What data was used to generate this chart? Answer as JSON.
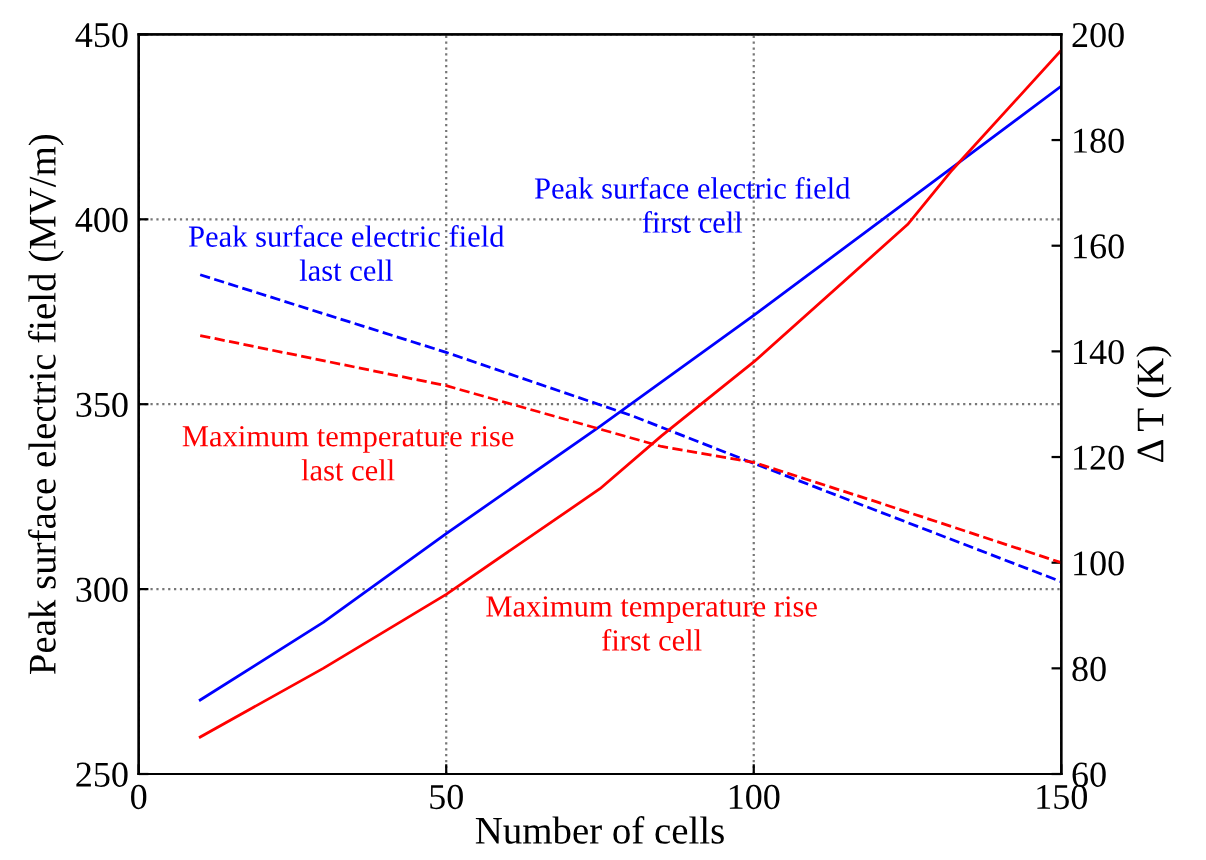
{
  "chart_data": {
    "type": "line",
    "xlabel": "Number of cells",
    "ylabel": "Peak surface electric field (MV/m)",
    "y2label": "Δ T (K)",
    "xlim": [
      0,
      150
    ],
    "xticks": [
      0,
      50,
      100,
      150
    ],
    "ylim": [
      250,
      450
    ],
    "yticks": [
      250,
      300,
      350,
      400,
      450
    ],
    "y2lim": [
      60,
      200
    ],
    "y2ticks": [
      60,
      80,
      100,
      120,
      140,
      160,
      180,
      200
    ],
    "grid": true,
    "legend": false,
    "series": [
      {
        "color": "#0000ff",
        "line_style": "solid",
        "x": [
          10,
          30,
          50,
          75,
          100,
          125,
          150
        ],
        "values": [
          270,
          291,
          315,
          344,
          374,
          405,
          436
        ]
      },
      {
        "color": "#0000ff",
        "line_style": "dashed",
        "x": [
          10,
          50,
          80,
          100,
          125,
          150
        ],
        "values": [
          385,
          364,
          347,
          334,
          318,
          302
        ]
      },
      {
        "color": "#ff0000",
        "line_style": "solid",
        "axis": "y2",
        "x": [
          10,
          30,
          50,
          75,
          85,
          100,
          125,
          132,
          150
        ],
        "values": [
          67,
          80,
          94,
          114,
          124,
          138,
          164,
          174,
          197
        ]
      },
      {
        "color": "#ff0000",
        "line_style": "dashed",
        "axis": "y2",
        "x": [
          10,
          50,
          85,
          100,
          120,
          150
        ],
        "values": [
          143,
          133.5,
          122,
          119,
          111.5,
          100
        ]
      }
    ],
    "annotations": [
      "Peak surface electric field\nfirst cell",
      "Peak surface electric field\nlast cell",
      "Maximum temperature rise\nfirst cell",
      "Maximum temperature rise\nlast cell"
    ]
  }
}
